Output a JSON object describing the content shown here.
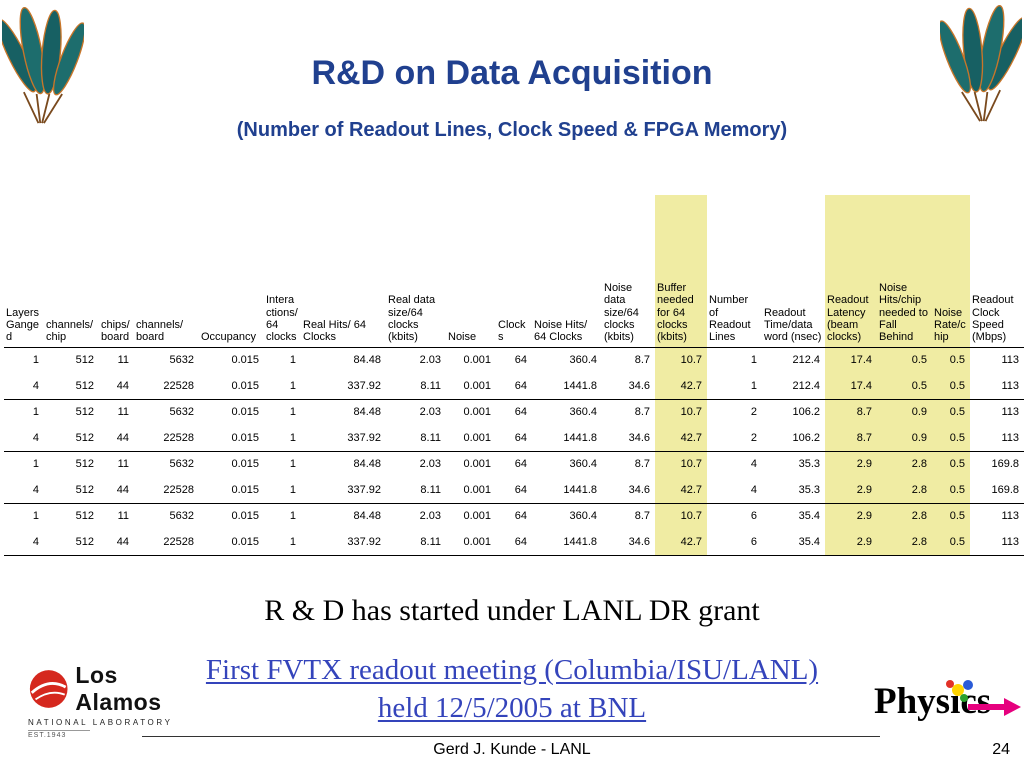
{
  "slide": {
    "title": "R&D on Data Acquisition",
    "subtitle": "(Number of Readout Lines, Clock Speed & FPGA Memory)",
    "statement": "R & D has started under LANL DR grant",
    "meeting_line1": "First FVTX readout meeting (Columbia/ISU/LANL)",
    "meeting_line2": "held 12/5/2005 at BNL",
    "footer_author": "Gerd J. Kunde - LANL",
    "page_number": "24"
  },
  "table": {
    "headers": [
      "Layers Ganged",
      "channels/chip",
      "chips/board",
      "channels/ board",
      "Occupancy",
      "Interactions/ 64 clocks",
      "Real Hits/ 64 Clocks",
      "Real data size/64 clocks (kbits)",
      "Noise",
      "Clocks",
      "Noise Hits/ 64 Clocks",
      "Noise data size/64 clocks (kbits)",
      "Buffer needed for 64 clocks (kbits)",
      "Number of Readout Lines",
      "Readout Time/data word (nsec)",
      "Readout Latency (beam clocks)",
      "Noise Hits/chip needed to Fall Behind",
      "Noise Rate/chip",
      "Readout Clock Speed (Mbps)"
    ],
    "highlight_columns": [
      12,
      15,
      16,
      17
    ],
    "row_groups": [
      [
        [
          "1",
          "512",
          "11",
          "5632",
          "0.015",
          "1",
          "84.48",
          "2.03",
          "0.001",
          "64",
          "360.4",
          "8.7",
          "10.7",
          "1",
          "212.4",
          "17.4",
          "0.5",
          "0.5",
          "113"
        ],
        [
          "4",
          "512",
          "44",
          "22528",
          "0.015",
          "1",
          "337.92",
          "8.11",
          "0.001",
          "64",
          "1441.8",
          "34.6",
          "42.7",
          "1",
          "212.4",
          "17.4",
          "0.5",
          "0.5",
          "113"
        ]
      ],
      [
        [
          "1",
          "512",
          "11",
          "5632",
          "0.015",
          "1",
          "84.48",
          "2.03",
          "0.001",
          "64",
          "360.4",
          "8.7",
          "10.7",
          "2",
          "106.2",
          "8.7",
          "0.9",
          "0.5",
          "113"
        ],
        [
          "4",
          "512",
          "44",
          "22528",
          "0.015",
          "1",
          "337.92",
          "8.11",
          "0.001",
          "64",
          "1441.8",
          "34.6",
          "42.7",
          "2",
          "106.2",
          "8.7",
          "0.9",
          "0.5",
          "113"
        ]
      ],
      [
        [
          "1",
          "512",
          "11",
          "5632",
          "0.015",
          "1",
          "84.48",
          "2.03",
          "0.001",
          "64",
          "360.4",
          "8.7",
          "10.7",
          "4",
          "35.3",
          "2.9",
          "2.8",
          "0.5",
          "169.8"
        ],
        [
          "4",
          "512",
          "44",
          "22528",
          "0.015",
          "1",
          "337.92",
          "8.11",
          "0.001",
          "64",
          "1441.8",
          "34.6",
          "42.7",
          "4",
          "35.3",
          "2.9",
          "2.8",
          "0.5",
          "169.8"
        ]
      ],
      [
        [
          "1",
          "512",
          "11",
          "5632",
          "0.015",
          "1",
          "84.48",
          "2.03",
          "0.001",
          "64",
          "360.4",
          "8.7",
          "10.7",
          "6",
          "35.4",
          "2.9",
          "2.8",
          "0.5",
          "113"
        ],
        [
          "4",
          "512",
          "44",
          "22528",
          "0.015",
          "1",
          "337.92",
          "8.11",
          "0.001",
          "64",
          "1441.8",
          "34.6",
          "42.7",
          "6",
          "35.4",
          "2.9",
          "2.8",
          "0.5",
          "113"
        ]
      ]
    ]
  },
  "logos": {
    "los_alamos": {
      "name": "Los Alamos",
      "sub": "NATIONAL LABORATORY",
      "est": "EST.1943"
    },
    "physics": {
      "text": "Physics"
    }
  },
  "colors": {
    "title_blue": "#20408f",
    "meeting_blue": "#3444bb",
    "highlight_yellow": "#f0eca3"
  }
}
